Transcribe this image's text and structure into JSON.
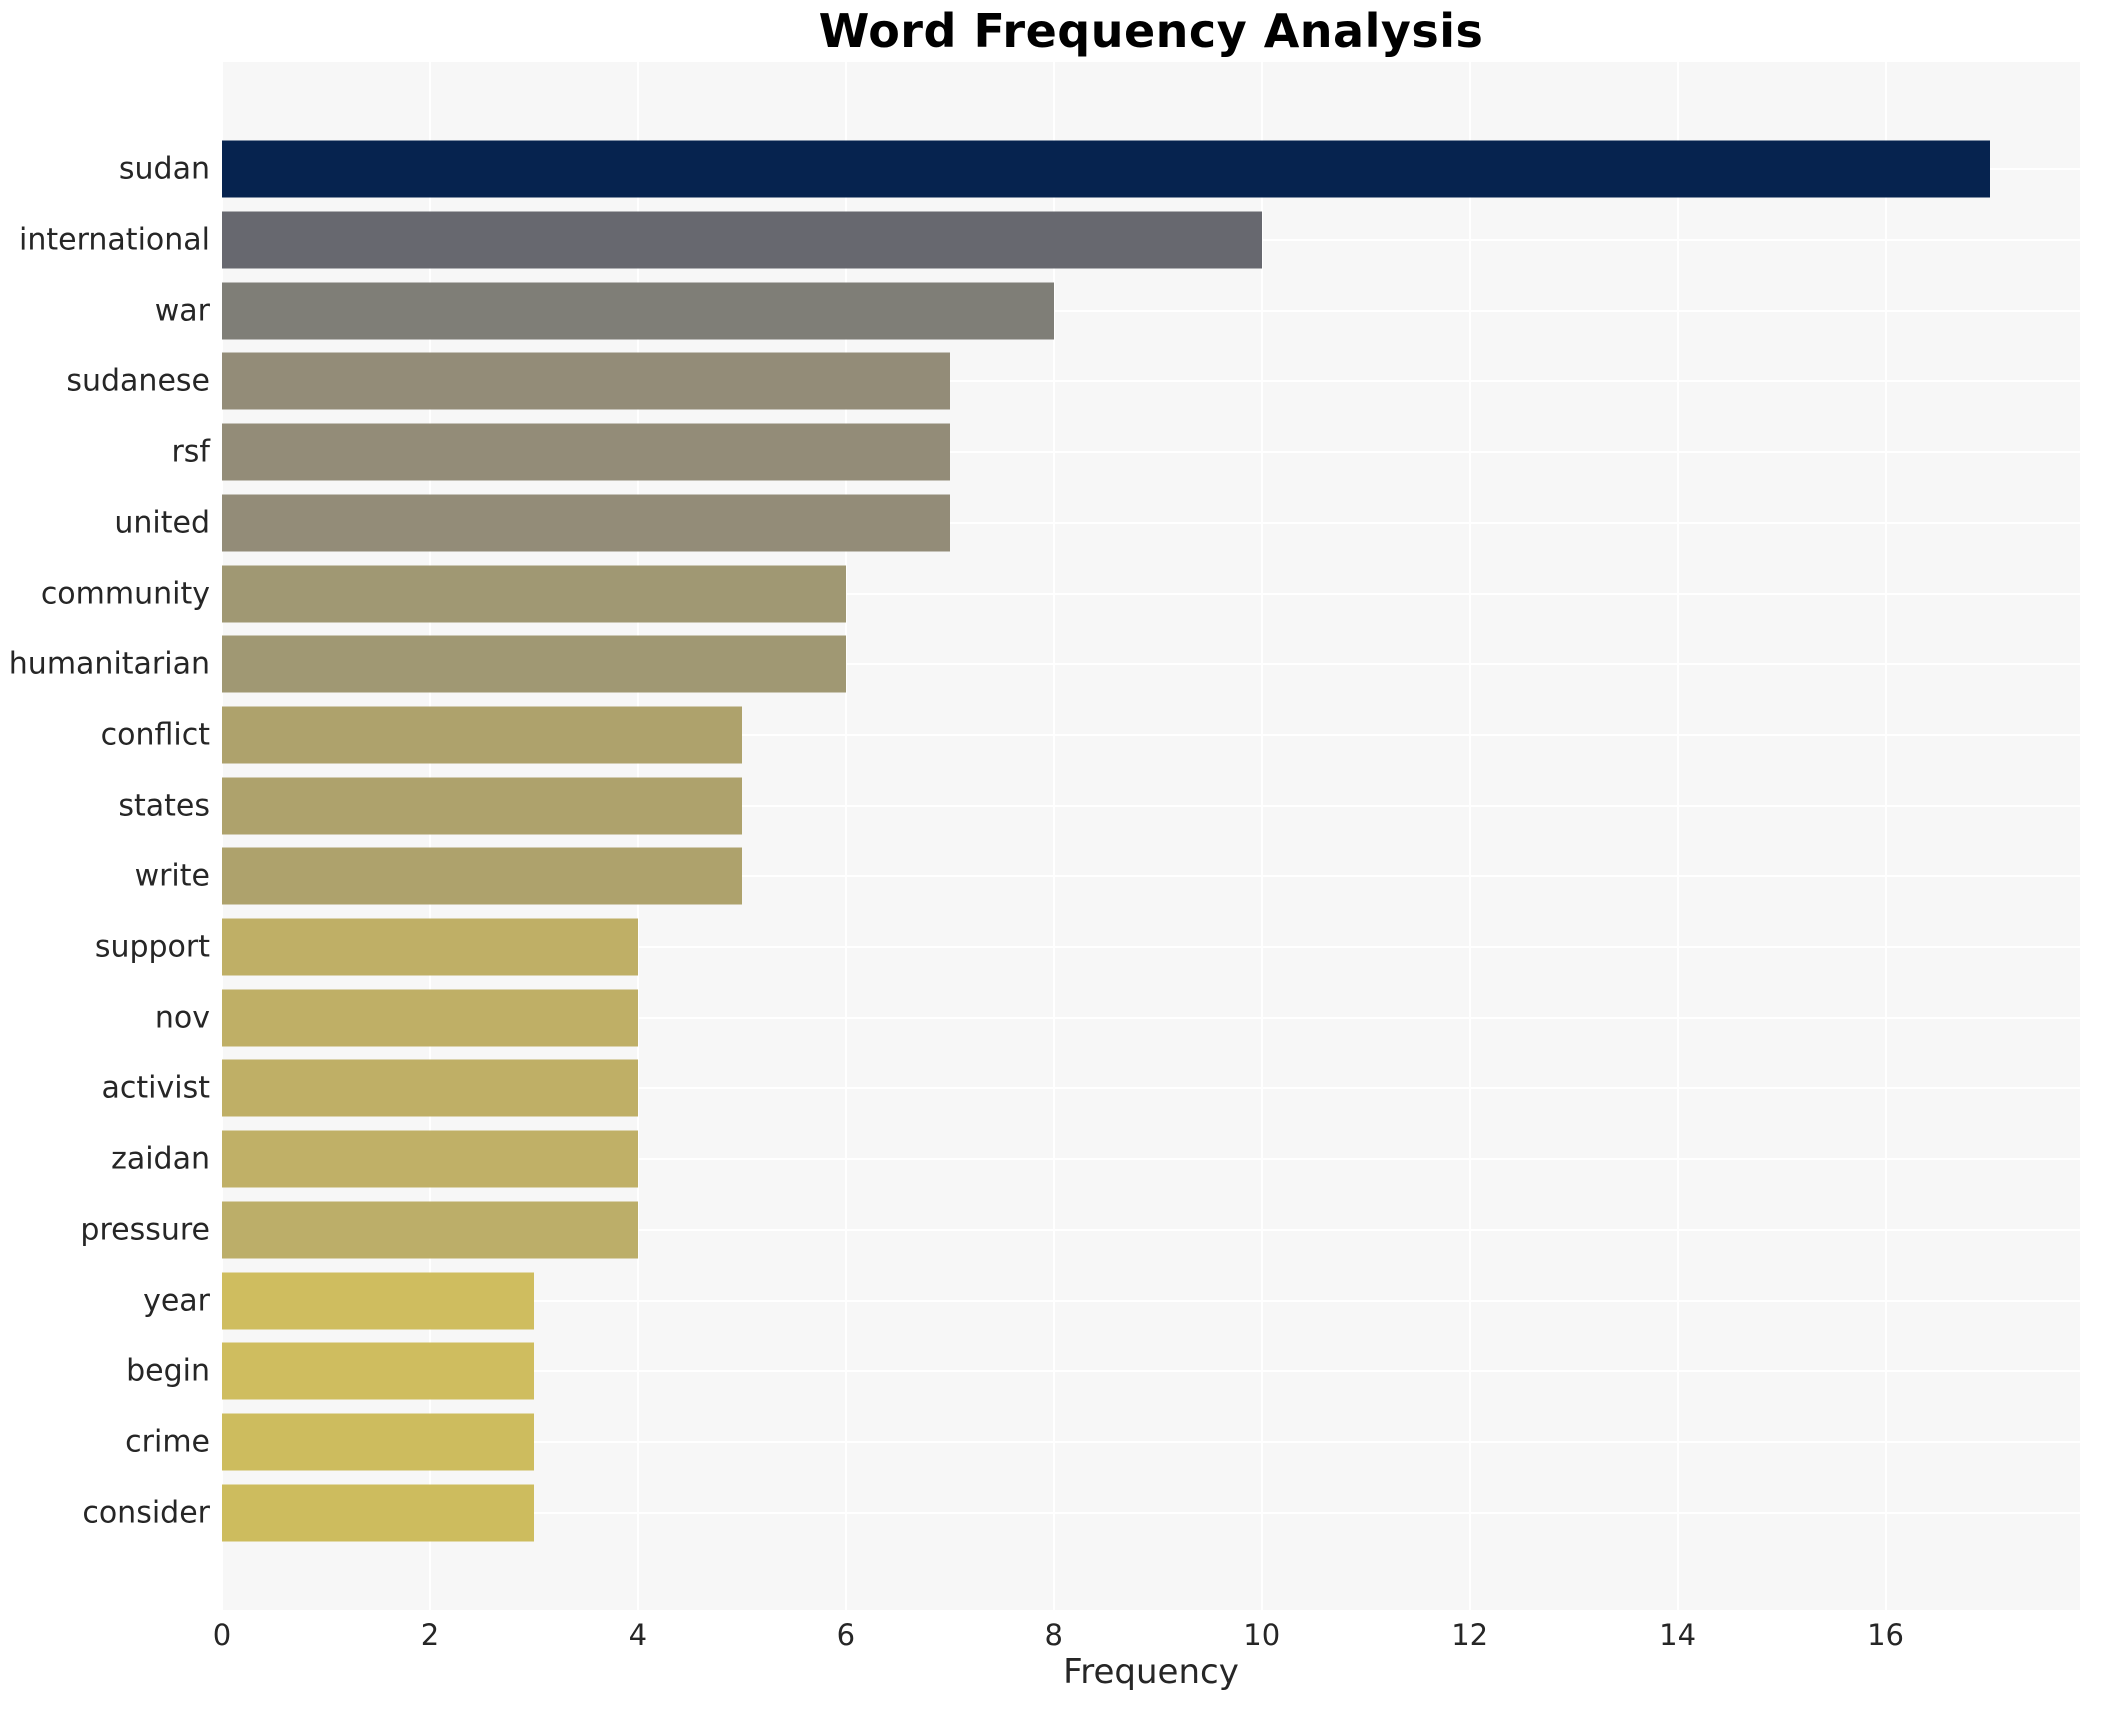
{
  "chart_data": {
    "type": "bar",
    "orientation": "horizontal",
    "title": "Word Frequency Analysis",
    "xlabel": "Frequency",
    "ylabel": "",
    "categories": [
      "sudan",
      "international",
      "war",
      "sudanese",
      "rsf",
      "united",
      "community",
      "humanitarian",
      "conflict",
      "states",
      "write",
      "support",
      "nov",
      "activist",
      "zaidan",
      "pressure",
      "year",
      "begin",
      "crime",
      "consider"
    ],
    "values": [
      17,
      10,
      8,
      7,
      7,
      7,
      6,
      6,
      5,
      5,
      5,
      4,
      4,
      4,
      4,
      4,
      3,
      3,
      3,
      3
    ],
    "bar_colors": [
      "#06234f",
      "#67686f",
      "#7f7e77",
      "#938c78",
      "#938c78",
      "#938c78",
      "#a09873",
      "#a09873",
      "#aea26c",
      "#aea26c",
      "#aea26c",
      "#bfaf66",
      "#bfaf66",
      "#bfaf66",
      "#c0b067",
      "#bcae69",
      "#cfbd5f",
      "#cfbd5f",
      "#cdbc5e",
      "#cdbc5e"
    ],
    "x_ticks": [
      0,
      2,
      4,
      6,
      8,
      10,
      12,
      14,
      16
    ],
    "xlim": [
      0,
      17.87
    ],
    "legend": "none",
    "grid": "white gridlines, vertical at even ticks and horizontal at each bar center",
    "colors": {
      "plot_background": "#f7f7f7",
      "page_background": "#ffffff",
      "gridline": "#ffffff",
      "label_text": "#262626",
      "title_text": "#000000"
    }
  }
}
